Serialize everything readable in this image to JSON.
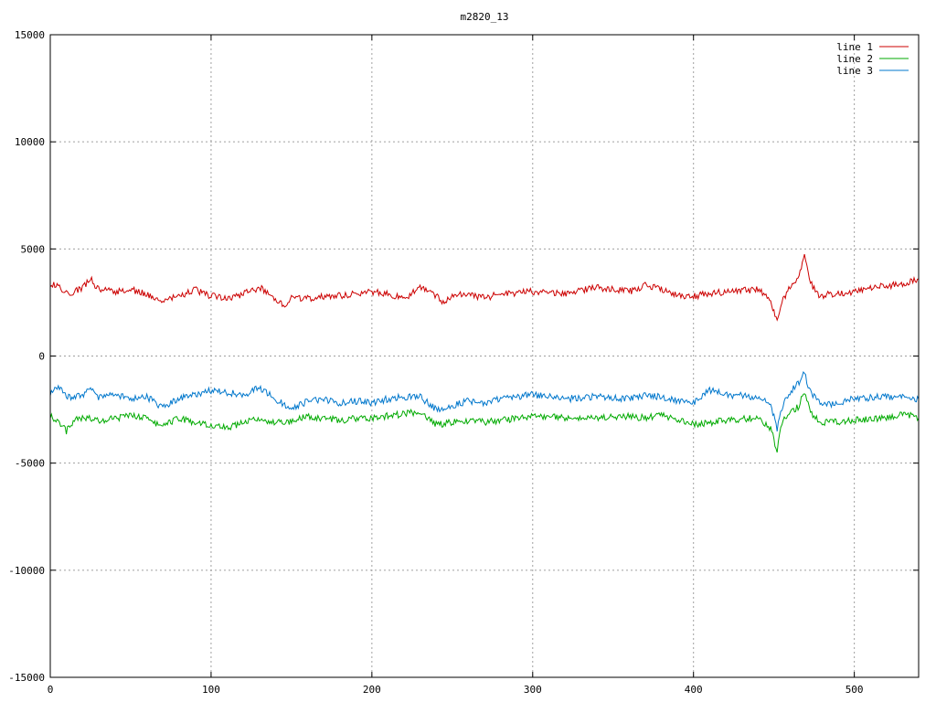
{
  "chart_data": {
    "type": "line",
    "title": "m2820_13",
    "xlim": [
      0,
      540
    ],
    "ylim": [
      -15000,
      15000
    ],
    "x_ticks": [
      0,
      100,
      200,
      300,
      400,
      500
    ],
    "y_ticks": [
      -15000,
      -10000,
      -5000,
      0,
      5000,
      10000,
      15000
    ],
    "grid": true,
    "legend_position": "top-right",
    "series": [
      {
        "name": "line 1",
        "color": "#cc0000",
        "x": [
          0,
          5,
          10,
          15,
          20,
          25,
          30,
          40,
          50,
          60,
          70,
          80,
          90,
          100,
          110,
          120,
          130,
          140,
          145,
          150,
          160,
          170,
          180,
          190,
          200,
          210,
          220,
          230,
          240,
          245,
          250,
          260,
          270,
          280,
          300,
          320,
          340,
          360,
          370,
          380,
          390,
          400,
          410,
          420,
          440,
          448,
          452,
          455,
          460,
          465,
          469,
          472,
          478,
          485,
          500,
          520,
          530,
          540
        ],
        "y": [
          3400,
          3300,
          2900,
          3000,
          3200,
          3600,
          3100,
          3000,
          3100,
          2900,
          2600,
          2800,
          3100,
          2800,
          2700,
          2900,
          3200,
          2700,
          2300,
          2700,
          2700,
          2800,
          2800,
          2900,
          3000,
          2900,
          2700,
          3200,
          2800,
          2500,
          2800,
          2900,
          2700,
          2900,
          3000,
          2900,
          3200,
          3000,
          3300,
          3100,
          2800,
          2800,
          2900,
          3000,
          3100,
          2600,
          1600,
          2500,
          3200,
          3700,
          4700,
          3500,
          2800,
          2900,
          3000,
          3300,
          3300,
          3600
        ]
      },
      {
        "name": "line 2",
        "color": "#00aa00",
        "x": [
          0,
          5,
          10,
          15,
          20,
          25,
          30,
          40,
          50,
          60,
          70,
          80,
          90,
          100,
          110,
          120,
          130,
          140,
          150,
          160,
          170,
          180,
          190,
          200,
          210,
          220,
          230,
          240,
          250,
          260,
          270,
          280,
          300,
          320,
          340,
          360,
          370,
          380,
          390,
          400,
          410,
          420,
          440,
          448,
          452,
          455,
          460,
          465,
          469,
          472,
          478,
          485,
          500,
          520,
          530,
          540
        ],
        "y": [
          -2800,
          -3100,
          -3500,
          -3000,
          -2900,
          -2900,
          -3000,
          -2900,
          -2800,
          -2900,
          -3300,
          -2900,
          -3100,
          -3200,
          -3400,
          -3100,
          -2900,
          -3100,
          -3100,
          -2800,
          -2900,
          -3000,
          -2900,
          -2900,
          -2800,
          -2700,
          -2600,
          -3200,
          -3100,
          -3000,
          -3100,
          -3000,
          -2800,
          -2900,
          -2900,
          -2800,
          -2900,
          -2700,
          -3000,
          -3200,
          -3100,
          -3000,
          -2900,
          -3400,
          -4400,
          -3100,
          -2600,
          -2400,
          -1700,
          -2500,
          -3100,
          -3100,
          -3000,
          -2900,
          -2700,
          -2900
        ]
      },
      {
        "name": "line 3",
        "color": "#0077cc",
        "x": [
          0,
          5,
          10,
          15,
          20,
          25,
          30,
          40,
          50,
          60,
          70,
          80,
          90,
          100,
          110,
          120,
          130,
          140,
          150,
          160,
          170,
          180,
          190,
          200,
          210,
          220,
          230,
          240,
          250,
          260,
          270,
          280,
          300,
          320,
          340,
          360,
          370,
          380,
          390,
          400,
          410,
          420,
          440,
          448,
          452,
          455,
          460,
          465,
          469,
          472,
          478,
          485,
          500,
          520,
          530,
          540
        ],
        "y": [
          -1700,
          -1400,
          -1900,
          -1900,
          -1800,
          -1600,
          -1900,
          -1800,
          -2000,
          -1900,
          -2400,
          -2000,
          -1800,
          -1600,
          -1700,
          -1800,
          -1500,
          -2000,
          -2500,
          -2100,
          -2000,
          -2200,
          -2100,
          -2200,
          -2000,
          -1900,
          -1900,
          -2500,
          -2300,
          -2100,
          -2200,
          -2000,
          -1800,
          -2000,
          -1900,
          -2000,
          -1800,
          -1900,
          -2100,
          -2200,
          -1600,
          -1800,
          -1900,
          -2300,
          -3400,
          -2400,
          -1700,
          -1300,
          -700,
          -1600,
          -2100,
          -2300,
          -2000,
          -1900,
          -1900,
          -2000
        ]
      }
    ]
  }
}
